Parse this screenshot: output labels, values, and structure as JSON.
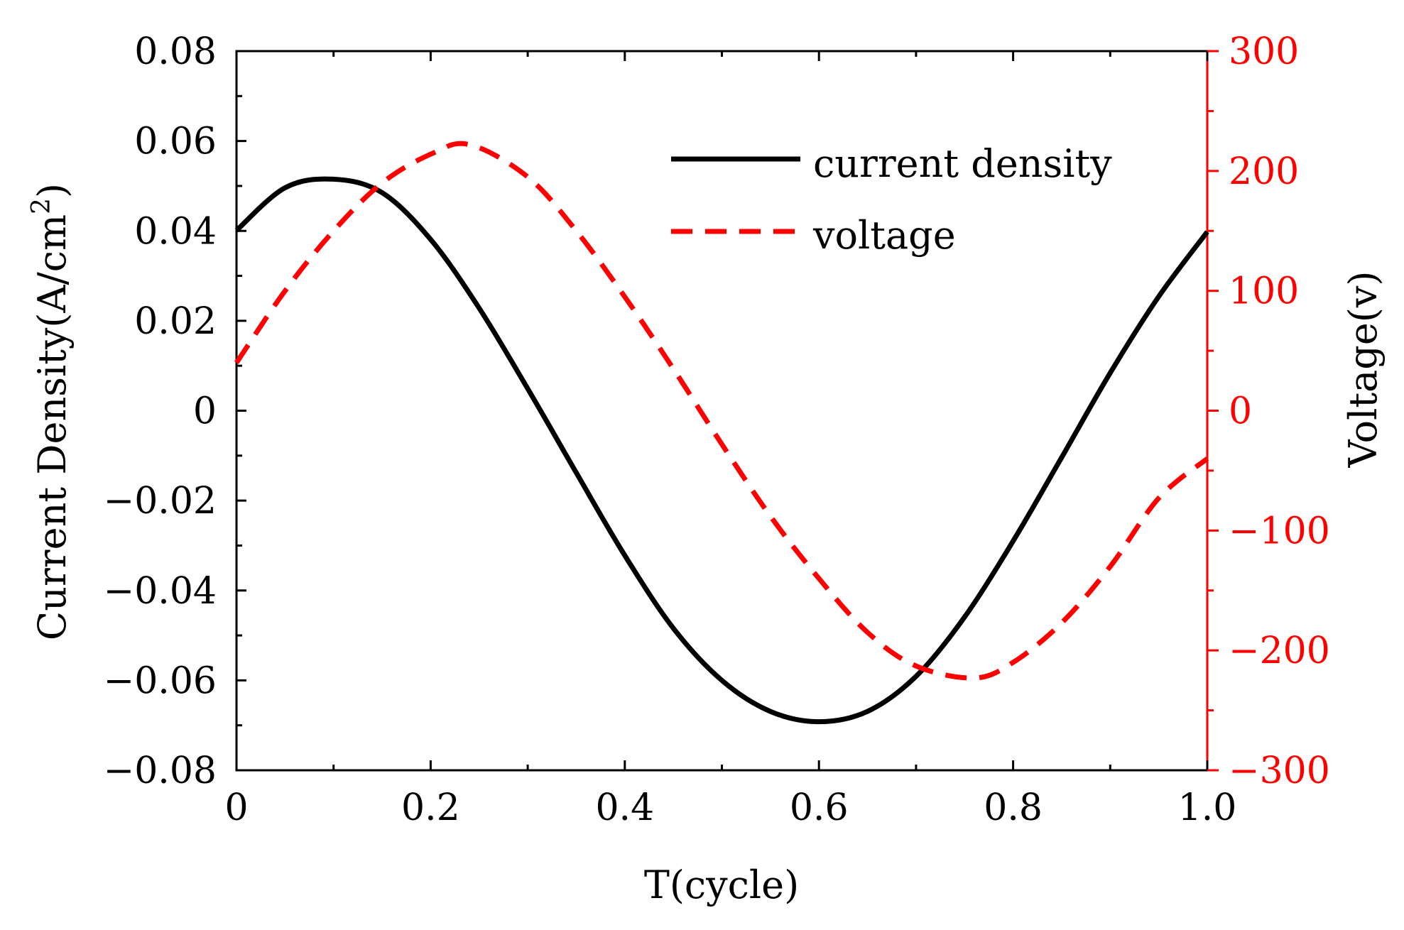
{
  "chart_data": {
    "type": "line",
    "title": "",
    "xlabel": "T(cycle)",
    "ylabel": "Current Density(A/cm",
    "ylabel_sup": "2",
    "ylabel_close": ")",
    "y2label": "Voltage(v)",
    "xlim": [
      0,
      1.0
    ],
    "ylim": [
      -0.08,
      0.08
    ],
    "y2lim": [
      -300,
      300
    ],
    "x_ticks": [
      "0",
      "0.2",
      "0.4",
      "0.6",
      "0.8",
      "1.0"
    ],
    "y_ticks": [
      "0.08",
      "0.06",
      "0.04",
      "0.02",
      "0",
      "−0.02",
      "−0.04",
      "−0.06",
      "−0.08"
    ],
    "y2_ticks": [
      "300",
      "200",
      "100",
      "0",
      "−100",
      "−200",
      "−300"
    ],
    "legend_position": "top-right",
    "colors": {
      "current": "#000000",
      "voltage": "#ff0000"
    },
    "series": [
      {
        "name": "current density",
        "axis": "left",
        "style": "solid",
        "x": [
          0,
          0.05,
          0.1,
          0.15,
          0.2,
          0.25,
          0.3,
          0.35,
          0.4,
          0.45,
          0.5,
          0.55,
          0.6,
          0.65,
          0.7,
          0.75,
          0.8,
          0.85,
          0.9,
          0.95,
          1.0
        ],
        "values": [
          0.0401,
          0.0496,
          0.0515,
          0.0485,
          0.0381,
          0.0228,
          0.0049,
          -0.0138,
          -0.0322,
          -0.0484,
          -0.06,
          -0.0669,
          -0.0692,
          -0.0669,
          -0.0591,
          -0.0459,
          -0.029,
          -0.0104,
          0.0084,
          0.0254,
          0.0398
        ]
      },
      {
        "name": "voltage",
        "axis": "right",
        "style": "dashed",
        "x": [
          0,
          0.05,
          0.1,
          0.15,
          0.2,
          0.24,
          0.3,
          0.35,
          0.4,
          0.45,
          0.5,
          0.55,
          0.6,
          0.65,
          0.7,
          0.76,
          0.8,
          0.85,
          0.9,
          0.95,
          1.0
        ],
        "values": [
          40,
          100,
          150,
          190,
          214,
          222,
          195,
          150,
          95,
          35,
          -28,
          -88,
          -140,
          -185,
          -213,
          -223,
          -210,
          -177,
          -130,
          -73,
          -40
        ]
      }
    ]
  }
}
